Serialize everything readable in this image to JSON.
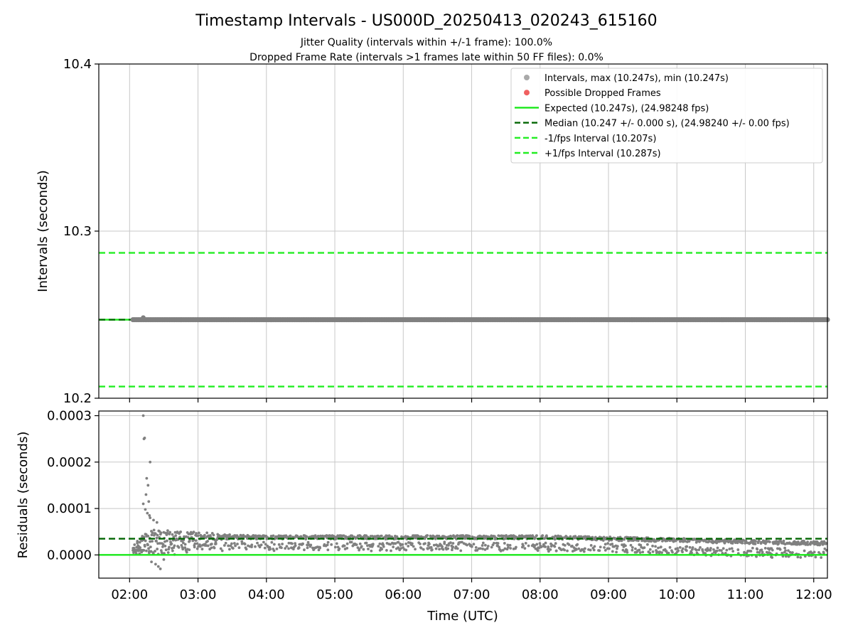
{
  "header": {
    "title": "Timestamp Intervals - US000D_20250413_020243_615160",
    "subtitle_1": "Jitter Quality (intervals within +/-1 frame): 100.0%",
    "subtitle_2": "Dropped Frame Rate (intervals >1 frames late within 50 FF files): 0.0%"
  },
  "colors": {
    "points": "#808080",
    "legend_points": "#a9a9a9",
    "dropped": "#f06060",
    "expected": "#18e818",
    "median": "#006400",
    "fps_interval": "#22ee22",
    "grid": "#c8c8c8"
  },
  "chart_data": [
    {
      "type": "scatter",
      "panel": "intervals",
      "ylabel": "Intervals (seconds)",
      "ylim": [
        10.2,
        10.4
      ],
      "yticks": [
        "10.2",
        "10.3",
        "10.4"
      ],
      "y_tick_values": [
        10.2,
        10.3,
        10.4
      ],
      "xlim": [
        1.55,
        12.2
      ],
      "grid": true,
      "legend_position": "top-right",
      "legend": [
        {
          "label": "Intervals, max (10.247s), min (10.247s)",
          "kind": "dot",
          "color": "#a9a9a9"
        },
        {
          "label": "Possible Dropped Frames",
          "kind": "dot",
          "color": "#f06060"
        },
        {
          "label": "Expected (10.247s), (24.98248 fps)",
          "kind": "solid",
          "color": "#18e818"
        },
        {
          "label": "Median (10.247 +/- 0.000 s), (24.98240 +/- 0.00 fps)",
          "kind": "dashed",
          "color": "#006400"
        },
        {
          "label": "-1/fps Interval (10.207s)",
          "kind": "dashed",
          "color": "#22ee22"
        },
        {
          "label": "+1/fps Interval (10.287s)",
          "kind": "dashed",
          "color": "#22ee22"
        }
      ],
      "series": [
        {
          "name": "Intervals",
          "x_start": 2.05,
          "x_end": 12.2,
          "y": 10.247
        },
        {
          "name": "Expected",
          "y": 10.247
        },
        {
          "name": "Median",
          "y": 10.247
        },
        {
          "name": "-1/fps Interval",
          "y": 10.207
        },
        {
          "name": "+1/fps Interval",
          "y": 10.287
        }
      ]
    },
    {
      "type": "scatter",
      "panel": "residuals",
      "xlabel": "Time (UTC)",
      "ylabel": "Residuals (seconds)",
      "ylim": [
        -5e-05,
        0.00031
      ],
      "yticks": [
        "0.0000",
        "0.0001",
        "0.0002",
        "0.0003"
      ],
      "y_tick_values": [
        0.0,
        0.0001,
        0.0002,
        0.0003
      ],
      "xlim": [
        1.55,
        12.2
      ],
      "xticks": [
        "02:00",
        "03:00",
        "04:00",
        "05:00",
        "06:00",
        "07:00",
        "08:00",
        "09:00",
        "10:00",
        "11:00",
        "12:00"
      ],
      "x_tick_values": [
        2,
        3,
        4,
        5,
        6,
        7,
        8,
        9,
        10,
        11,
        12
      ],
      "grid": true,
      "series": [
        {
          "name": "Expected",
          "y": 0.0
        },
        {
          "name": "Median",
          "y": 3.5e-05
        },
        {
          "name": "Residuals",
          "trend": [
            [
              2.05,
              1e-05
            ],
            [
              2.3,
              4e-05
            ],
            [
              3.0,
              4e-05
            ],
            [
              4.0,
              3.8e-05
            ],
            [
              6.0,
              3.8e-05
            ],
            [
              8.0,
              3.8e-05
            ],
            [
              9.0,
              3.5e-05
            ],
            [
              10.0,
              3.2e-05
            ],
            [
              11.0,
              2.8e-05
            ],
            [
              12.2,
              2.5e-05
            ]
          ],
          "lower_band": [
            [
              2.05,
              1e-05
            ],
            [
              2.3,
              0.0
            ],
            [
              3.0,
              1e-05
            ],
            [
              6.0,
              1e-05
            ],
            [
              9.0,
              8e-06
            ],
            [
              10.0,
              0.0
            ],
            [
              11.0,
              -3e-06
            ],
            [
              12.2,
              -6e-06
            ]
          ],
          "early_outliers": [
            [
              2.2,
              0.0003
            ],
            [
              2.21,
              0.00025
            ],
            [
              2.22,
              0.000252
            ],
            [
              2.3,
              0.0002
            ],
            [
              2.25,
              0.000165
            ],
            [
              2.27,
              0.00015
            ],
            [
              2.24,
              0.00013
            ],
            [
              2.28,
              0.000115
            ],
            [
              2.2,
              0.00011
            ],
            [
              2.23,
              9.8e-05
            ],
            [
              2.26,
              9e-05
            ],
            [
              2.29,
              8.5e-05
            ],
            [
              2.3,
              8e-05
            ],
            [
              2.35,
              7.5e-05
            ],
            [
              2.4,
              7e-05
            ],
            [
              2.32,
              -1.5e-05
            ],
            [
              2.38,
              -2e-05
            ],
            [
              2.45,
              -3e-05
            ],
            [
              2.42,
              -2.5e-05
            ],
            [
              2.5,
              -1e-05
            ]
          ]
        }
      ]
    }
  ]
}
